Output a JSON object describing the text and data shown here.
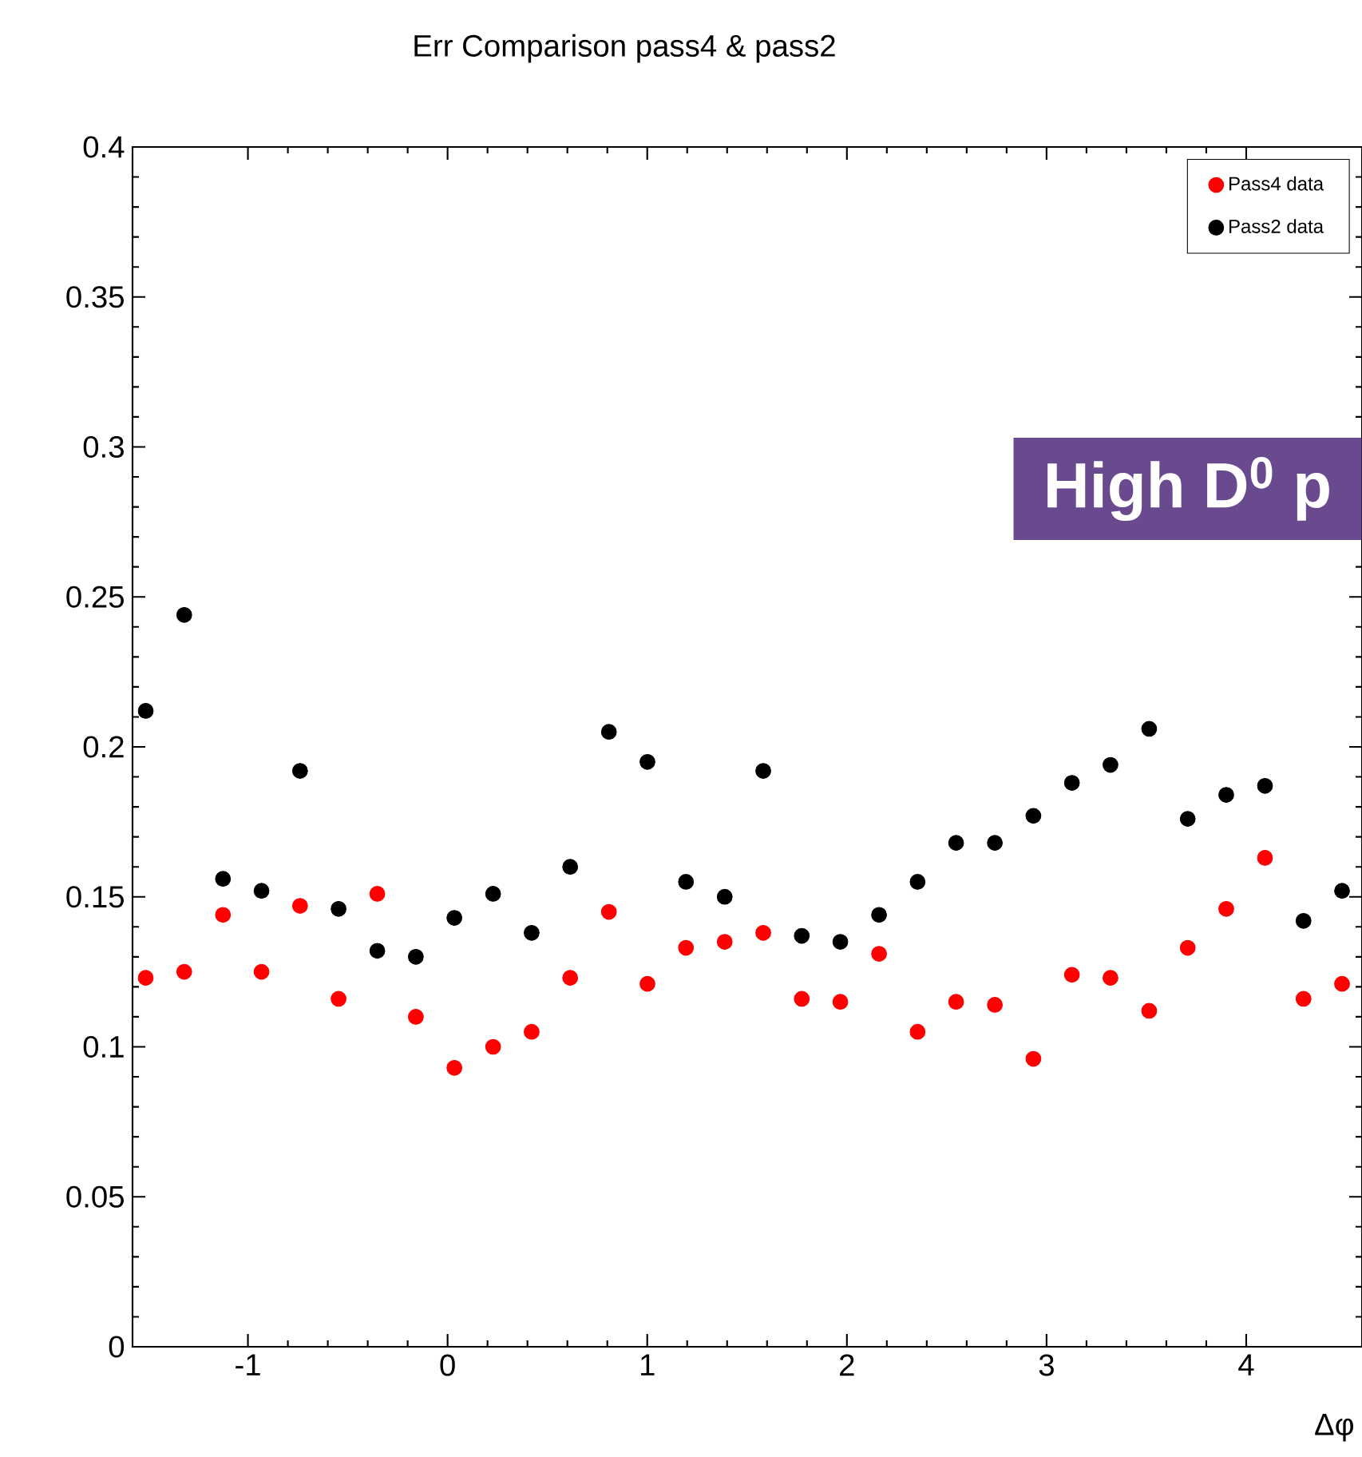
{
  "chart_data": {
    "type": "scatter",
    "title": "Err Comparison pass4 & pass2",
    "xlabel": "Δφ",
    "x": [
      -1.512,
      -1.319,
      -1.125,
      -0.932,
      -0.739,
      -0.546,
      -0.352,
      -0.159,
      0.034,
      0.228,
      0.421,
      0.614,
      0.808,
      1.001,
      1.194,
      1.388,
      1.581,
      1.774,
      1.967,
      2.161,
      2.354,
      2.547,
      2.741,
      2.934,
      3.127,
      3.32,
      3.514,
      3.707,
      3.9,
      4.094,
      4.287,
      4.48
    ],
    "series": [
      {
        "name": "Pass4 data",
        "color": "#ff0000",
        "values": [
          0.123,
          0.125,
          0.144,
          0.125,
          0.147,
          0.116,
          0.151,
          0.11,
          0.093,
          0.1,
          0.105,
          0.123,
          0.145,
          0.121,
          0.133,
          0.135,
          0.138,
          0.116,
          0.115,
          0.131,
          0.105,
          0.115,
          0.114,
          0.096,
          0.124,
          0.123,
          0.112,
          0.133,
          0.146,
          0.163,
          0.116,
          0.121
        ]
      },
      {
        "name": "Pass2 data",
        "color": "#000000",
        "values": [
          0.212,
          0.244,
          0.156,
          0.152,
          0.192,
          0.146,
          0.132,
          0.13,
          0.143,
          0.151,
          0.138,
          0.16,
          0.205,
          0.195,
          0.155,
          0.15,
          0.192,
          0.137,
          0.135,
          0.144,
          0.155,
          0.168,
          0.168,
          0.177,
          0.188,
          0.194,
          0.206,
          0.176,
          0.184,
          0.187,
          0.142,
          0.152
        ]
      }
    ],
    "xlim": [
      -1.578,
      4.58
    ],
    "ylim": [
      0,
      0.4
    ],
    "xticks": [
      -1,
      0,
      1,
      2,
      3,
      4
    ],
    "yticks": [
      0,
      0.05,
      0.1,
      0.15,
      0.2,
      0.25,
      0.3,
      0.35,
      0.4
    ],
    "marker": "circle",
    "grid": false,
    "legend": "top right",
    "annotations": [
      "**High D$^{0}$ p**"
    ]
  }
}
